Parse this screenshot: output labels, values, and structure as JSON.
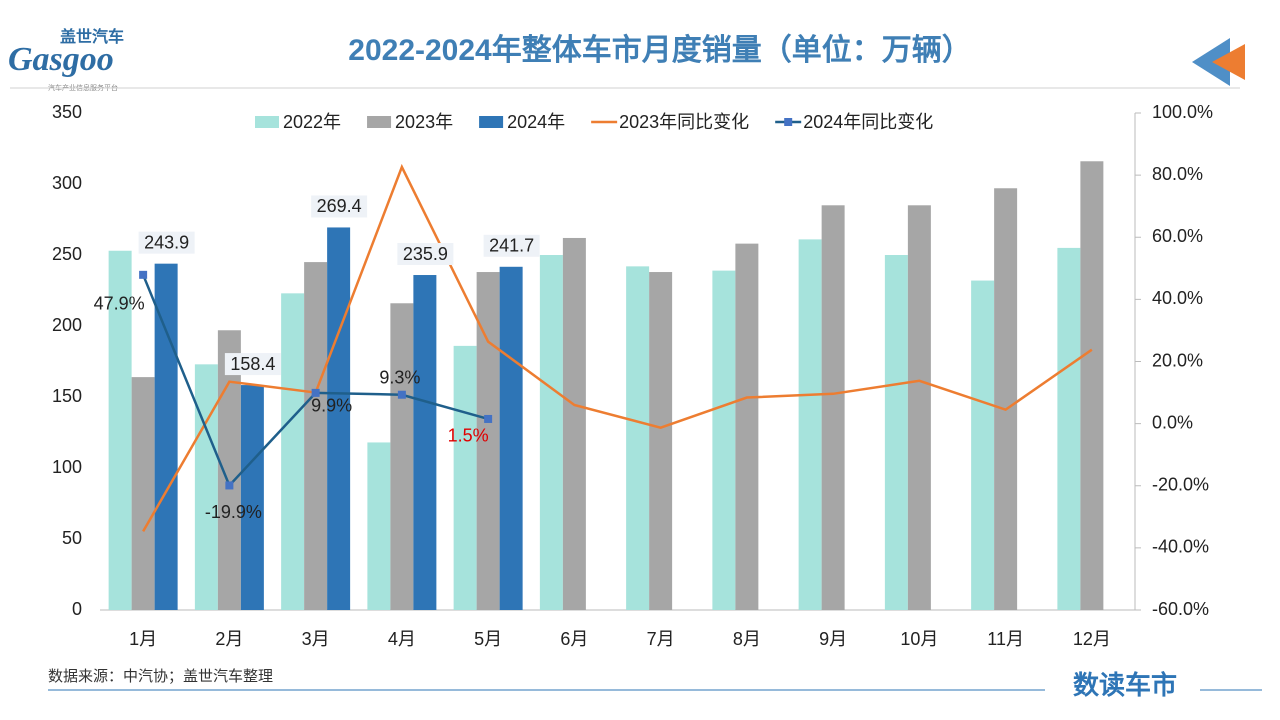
{
  "logo_cn": "盖世汽车",
  "logo_en": "Gasgoo",
  "logo_tagline": "汽车产业信息服务平台",
  "source": "数据来源：中汽协；盖世汽车整理",
  "brand": "数读车市",
  "chart_data": {
    "type": "bar-line",
    "title": "2022-2024年整体车市月度销量（单位：万辆）",
    "categories": [
      "1月",
      "2月",
      "3月",
      "4月",
      "5月",
      "6月",
      "7月",
      "8月",
      "9月",
      "10月",
      "11月",
      "12月"
    ],
    "series": [
      {
        "name": "2022年",
        "color": "#a6e3dc",
        "values": [
          253,
          173,
          223,
          118,
          186,
          250,
          242,
          239,
          261,
          250,
          232,
          255
        ]
      },
      {
        "name": "2023年",
        "color": "#a6a6a6",
        "values": [
          164,
          197,
          245,
          216,
          238,
          262,
          238,
          258,
          285,
          285,
          297,
          316
        ]
      },
      {
        "name": "2024年",
        "color": "#2e75b6",
        "values": [
          243.9,
          158.4,
          269.4,
          235.9,
          241.7,
          null,
          null,
          null,
          null,
          null,
          null,
          null
        ]
      },
      {
        "name": "2023年同比变化",
        "color": "#ed7d31",
        "axis": "y2",
        "values": [
          -34.7,
          13.5,
          10,
          82.6,
          26.4,
          6,
          -1.3,
          8.4,
          9.6,
          13.8,
          4.5,
          23.8
        ]
      },
      {
        "name": "2024年同比变化",
        "color": "#1f5f8b",
        "axis": "y2",
        "values": [
          47.9,
          -19.9,
          9.9,
          9.3,
          1.5,
          null,
          null,
          null,
          null,
          null,
          null,
          null
        ],
        "value_labels": [
          "47.9%",
          "-19.9%",
          "9.9%",
          "9.3%",
          "1.5%"
        ],
        "value_label_colors": [
          "#222",
          "#222",
          "#222",
          "#222",
          "#e00000"
        ]
      }
    ],
    "ylim": [
      0,
      350
    ],
    "yticks": [
      0,
      50,
      100,
      150,
      200,
      250,
      300,
      350
    ],
    "y2lim": [
      -60,
      100
    ],
    "y2ticks": [
      {
        "value": -60,
        "label": "-60.0%"
      },
      {
        "value": -40,
        "label": "-40.0%"
      },
      {
        "value": -20,
        "label": "-20.0%"
      },
      {
        "value": 0,
        "label": "0.0%"
      },
      {
        "value": 20,
        "label": "20.0%"
      },
      {
        "value": 40,
        "label": "40.0%"
      },
      {
        "value": 60,
        "label": "60.0%"
      },
      {
        "value": 80,
        "label": "80.0%"
      },
      {
        "value": 100,
        "label": "100.0%"
      }
    ]
  }
}
